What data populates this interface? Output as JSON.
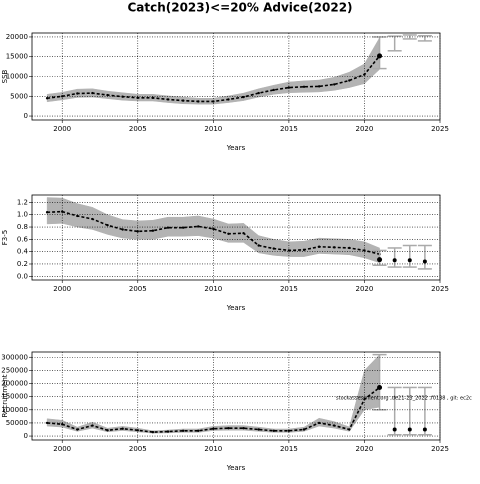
{
  "title": "Catch(2023)<=20% Advice(2022)",
  "chart_data": [
    {
      "type": "line",
      "xlabel": "Years",
      "ylabel": "SSB",
      "xlim": [
        1998,
        2025
      ],
      "xticks": [
        2000,
        2005,
        2010,
        2015,
        2020,
        2025
      ],
      "ylim": [
        -1000,
        21000
      ],
      "yticks": [
        0,
        5000,
        10000,
        15000,
        20000
      ],
      "grid": true,
      "x": [
        1999,
        2000,
        2001,
        2002,
        2003,
        2004,
        2005,
        2006,
        2007,
        2008,
        2009,
        2010,
        2011,
        2012,
        2013,
        2014,
        2015,
        2016,
        2017,
        2018,
        2019,
        2020,
        2021
      ],
      "values": [
        4500,
        5000,
        5700,
        5800,
        5300,
        4900,
        4600,
        4600,
        4200,
        3900,
        3700,
        3700,
        4200,
        4800,
        5800,
        6600,
        7200,
        7400,
        7500,
        8000,
        9000,
        10500,
        15200
      ],
      "lower": [
        3600,
        4100,
        4700,
        4800,
        4400,
        4000,
        3800,
        3800,
        3400,
        3100,
        3000,
        3000,
        3400,
        3900,
        4800,
        5500,
        5900,
        6000,
        6100,
        6500,
        7200,
        8200,
        11800
      ],
      "upper": [
        5500,
        6000,
        6800,
        6900,
        6300,
        5900,
        5500,
        5500,
        5100,
        4800,
        4500,
        4500,
        5100,
        5800,
        6900,
        7800,
        8600,
        8900,
        9100,
        9800,
        11100,
        13200,
        19800
      ],
      "projection": {
        "x": [
          2021,
          2022,
          2023,
          2024
        ],
        "values": [
          15200,
          null,
          null,
          null
        ],
        "lower": [
          12000,
          16500,
          19500,
          19000
        ],
        "upper": [
          20000,
          20200,
          20500,
          20300
        ]
      },
      "color": "#000000",
      "band_color": "#b3b3b3"
    },
    {
      "type": "line",
      "xlabel": "Years",
      "ylabel": "F3-5",
      "xlim": [
        1998,
        2025
      ],
      "xticks": [
        2000,
        2005,
        2010,
        2015,
        2020,
        2025
      ],
      "ylim": [
        -0.06,
        1.32
      ],
      "yticks": [
        {
          "value": 0,
          "label": "0.0"
        },
        0.2,
        0.4,
        0.6,
        0.8,
        {
          "value": 1,
          "label": "1.0"
        },
        1.2
      ],
      "grid": true,
      "x": [
        1999,
        2000,
        2001,
        2002,
        2003,
        2004,
        2005,
        2006,
        2007,
        2008,
        2009,
        2010,
        2011,
        2012,
        2013,
        2014,
        2015,
        2016,
        2017,
        2018,
        2019,
        2020,
        2021
      ],
      "values": [
        1.04,
        1.05,
        0.98,
        0.93,
        0.83,
        0.76,
        0.73,
        0.74,
        0.79,
        0.79,
        0.81,
        0.77,
        0.69,
        0.7,
        0.5,
        0.45,
        0.42,
        0.43,
        0.48,
        0.47,
        0.46,
        0.42,
        0.36
      ],
      "lower": [
        0.85,
        0.86,
        0.8,
        0.76,
        0.68,
        0.62,
        0.6,
        0.6,
        0.65,
        0.65,
        0.66,
        0.62,
        0.55,
        0.55,
        0.38,
        0.34,
        0.32,
        0.32,
        0.37,
        0.36,
        0.35,
        0.3,
        0.22
      ],
      "upper": [
        1.28,
        1.27,
        1.18,
        1.12,
        1.0,
        0.92,
        0.9,
        0.91,
        0.96,
        0.96,
        0.98,
        0.93,
        0.85,
        0.86,
        0.66,
        0.6,
        0.56,
        0.57,
        0.62,
        0.61,
        0.6,
        0.56,
        0.46
      ],
      "projection": {
        "x": [
          2021,
          2022,
          2023,
          2024
        ],
        "values": [
          0.27,
          0.26,
          0.26,
          0.24
        ],
        "lower": [
          0.18,
          0.15,
          0.15,
          0.12
        ],
        "upper": [
          0.42,
          0.46,
          0.5,
          0.5
        ]
      },
      "color": "#000000",
      "band_color": "#b3b3b3"
    },
    {
      "type": "line",
      "xlabel": "Years",
      "ylabel": "Recruitment",
      "annotation": "stockassessment.org ,de21-23_2022 ,f0138 , git: ec2c",
      "xlim": [
        1998,
        2025
      ],
      "xticks": [
        2000,
        2005,
        2010,
        2015,
        2020,
        2025
      ],
      "ylim": [
        -15000,
        320000
      ],
      "yticks": [
        0,
        50000,
        100000,
        150000,
        200000,
        250000,
        300000
      ],
      "grid": true,
      "x": [
        1999,
        2000,
        2001,
        2002,
        2003,
        2004,
        2005,
        2006,
        2007,
        2008,
        2009,
        2010,
        2011,
        2012,
        2013,
        2014,
        2015,
        2016,
        2017,
        2018,
        2019,
        2020,
        2021
      ],
      "values": [
        50000,
        45000,
        25000,
        40000,
        22000,
        28000,
        22000,
        15000,
        17000,
        20000,
        20000,
        28000,
        30000,
        30000,
        25000,
        20000,
        20000,
        25000,
        50000,
        40000,
        25000,
        140000,
        185000
      ],
      "lower": [
        38000,
        34000,
        18000,
        30000,
        16000,
        21000,
        16000,
        11000,
        12000,
        14000,
        14000,
        21000,
        22000,
        22000,
        18000,
        14000,
        14000,
        18000,
        38000,
        30000,
        18000,
        100000,
        110000
      ],
      "upper": [
        66000,
        60000,
        34000,
        53000,
        30000,
        37000,
        30000,
        20000,
        23000,
        27000,
        27000,
        37000,
        40000,
        40000,
        34000,
        27000,
        27000,
        34000,
        68000,
        55000,
        35000,
        250000,
        310000
      ],
      "projection": {
        "x": [
          2021,
          2022,
          2023,
          2024
        ],
        "values": [
          185000,
          25000,
          25000,
          25000
        ],
        "lower": [
          100000,
          5000,
          5000,
          5000
        ],
        "upper": [
          310000,
          185000,
          185000,
          185000
        ]
      },
      "color": "#000000",
      "band_color": "#b3b3b3"
    }
  ]
}
